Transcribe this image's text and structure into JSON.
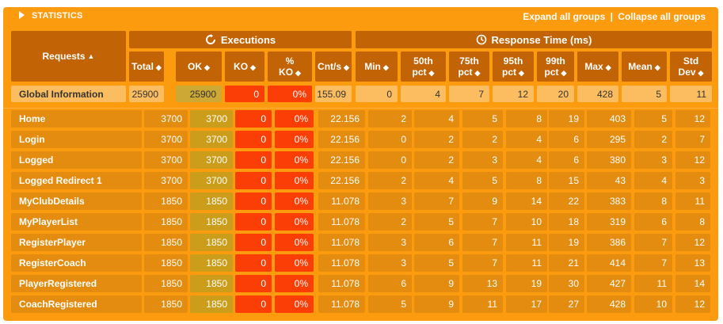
{
  "title": "STATISTICS",
  "expand_label": "Expand all groups",
  "separator": "|",
  "collapse_label": "Collapse all groups",
  "groups": {
    "executions": "Executions",
    "response_time": "Response Time (ms)"
  },
  "requests_header": "Requests",
  "sort_up_glyph": "▲",
  "sort_glyph": "◆",
  "columns": [
    {
      "l1": "Total",
      "l2": ""
    },
    {
      "l1": "OK",
      "l2": ""
    },
    {
      "l1": "KO",
      "l2": ""
    },
    {
      "l1": "%",
      "l2": "KO"
    },
    {
      "l1": "Cnt/s",
      "l2": ""
    },
    {
      "l1": "Min",
      "l2": ""
    },
    {
      "l1": "50th",
      "l2": "pct"
    },
    {
      "l1": "75th",
      "l2": "pct"
    },
    {
      "l1": "95th",
      "l2": "pct"
    },
    {
      "l1": "99th",
      "l2": "pct"
    },
    {
      "l1": "Max",
      "l2": ""
    },
    {
      "l1": "Mean",
      "l2": ""
    },
    {
      "l1": "Std",
      "l2": "Dev"
    }
  ],
  "global": {
    "name": "Global Information",
    "values": [
      "25900",
      "25900",
      "0",
      "0%",
      "155.09",
      "0",
      "4",
      "7",
      "12",
      "20",
      "428",
      "5",
      "11"
    ]
  },
  "rows": [
    {
      "name": "Home",
      "values": [
        "3700",
        "3700",
        "0",
        "0%",
        "22.156",
        "2",
        "4",
        "5",
        "8",
        "19",
        "403",
        "5",
        "12"
      ]
    },
    {
      "name": "Login",
      "values": [
        "3700",
        "3700",
        "0",
        "0%",
        "22.156",
        "0",
        "2",
        "2",
        "4",
        "6",
        "295",
        "2",
        "7"
      ]
    },
    {
      "name": "Logged",
      "values": [
        "3700",
        "3700",
        "0",
        "0%",
        "22.156",
        "0",
        "2",
        "3",
        "4",
        "6",
        "380",
        "3",
        "12"
      ]
    },
    {
      "name": "Logged Redirect 1",
      "values": [
        "3700",
        "3700",
        "0",
        "0%",
        "22.156",
        "2",
        "4",
        "5",
        "8",
        "15",
        "43",
        "4",
        "3"
      ]
    },
    {
      "name": "MyClubDetails",
      "values": [
        "1850",
        "1850",
        "0",
        "0%",
        "11.078",
        "3",
        "7",
        "9",
        "14",
        "22",
        "383",
        "8",
        "11"
      ]
    },
    {
      "name": "MyPlayerList",
      "values": [
        "1850",
        "1850",
        "0",
        "0%",
        "11.078",
        "2",
        "5",
        "7",
        "10",
        "18",
        "319",
        "6",
        "8"
      ]
    },
    {
      "name": "RegisterPlayer",
      "values": [
        "1850",
        "1850",
        "0",
        "0%",
        "11.078",
        "3",
        "6",
        "7",
        "11",
        "19",
        "386",
        "7",
        "12"
      ]
    },
    {
      "name": "RegisterCoach",
      "values": [
        "1850",
        "1850",
        "0",
        "0%",
        "11.078",
        "3",
        "5",
        "7",
        "11",
        "21",
        "414",
        "7",
        "13"
      ]
    },
    {
      "name": "PlayerRegistered",
      "values": [
        "1850",
        "1850",
        "0",
        "0%",
        "11.078",
        "6",
        "9",
        "13",
        "19",
        "30",
        "427",
        "11",
        "14"
      ]
    },
    {
      "name": "CoachRegistered",
      "values": [
        "1850",
        "1850",
        "0",
        "0%",
        "11.078",
        "5",
        "9",
        "11",
        "17",
        "27",
        "428",
        "10",
        "12"
      ]
    }
  ]
}
